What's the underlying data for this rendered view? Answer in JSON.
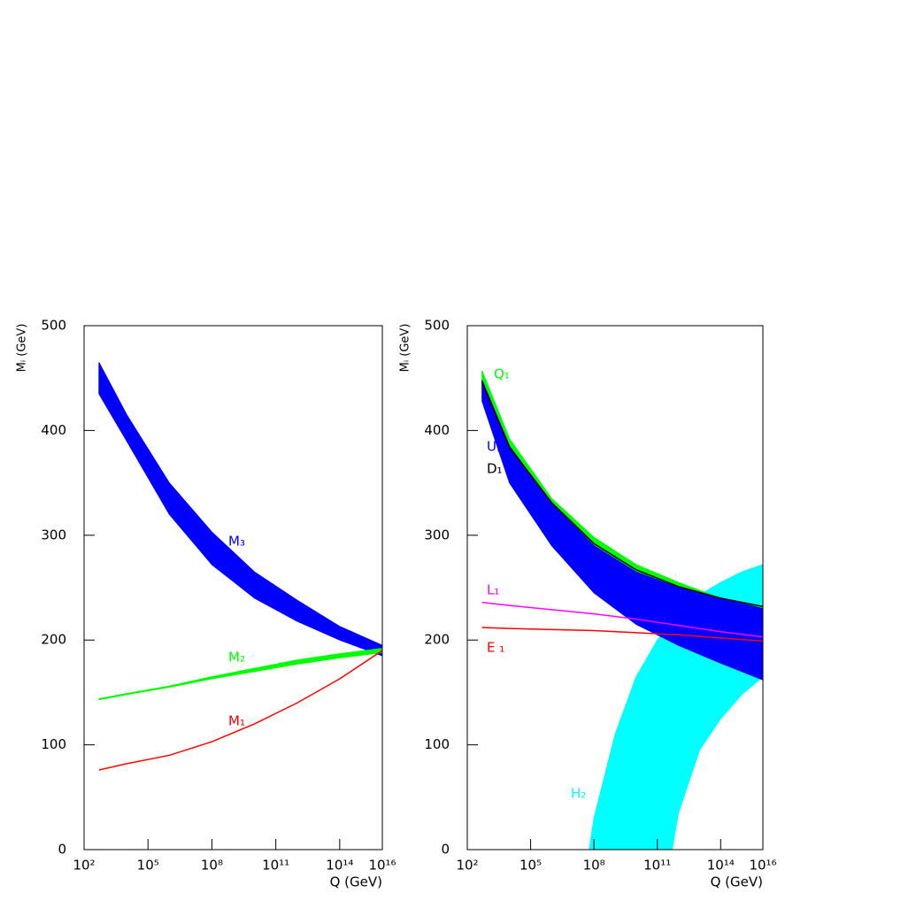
{
  "chart_data": [
    {
      "type": "line",
      "xscale": "log",
      "ylabel": "Mᵢ (GeV)",
      "xlabel": "Q (GeV)",
      "xlim": [
        100,
        1e+16
      ],
      "ylim": [
        0,
        500
      ],
      "xticks": [
        {
          "value": 100,
          "label": "10²"
        },
        {
          "value": 100000.0,
          "label": "10⁵"
        },
        {
          "value": 100000000.0,
          "label": "10⁸"
        },
        {
          "value": 100000000000.0,
          "label": "10¹¹"
        },
        {
          "value": 100000000000000.0,
          "label": "10¹⁴"
        },
        {
          "value": 1e+16,
          "label": "10¹⁶"
        }
      ],
      "yticks": [
        0,
        100,
        200,
        300,
        400,
        500
      ],
      "x": [
        500,
        10000.0,
        1000000.0,
        100000000.0,
        10000000000.0,
        1000000000000.0,
        100000000000000.0,
        1e+16
      ],
      "series": [
        {
          "name": "M₃",
          "color": "#0000ff",
          "upper": [
            465,
            415,
            350,
            303,
            265,
            238,
            213,
            195
          ],
          "lower": [
            435,
            390,
            320,
            272,
            240,
            218,
            200,
            185
          ]
        },
        {
          "name": "M₂",
          "color": "#00ff00",
          "upper": [
            144,
            149,
            156,
            165,
            173,
            181,
            187,
            192
          ],
          "lower": [
            143,
            148,
            155,
            163,
            170,
            177,
            183,
            188
          ]
        },
        {
          "name": "M₁",
          "color": "#ff0000",
          "values": [
            76,
            82,
            90,
            103,
            120,
            140,
            163,
            190
          ]
        }
      ]
    },
    {
      "type": "line",
      "xscale": "log",
      "ylabel": "Mᵢ (GeV)",
      "xlabel": "Q (GeV)",
      "xlim": [
        100,
        1e+16
      ],
      "ylim": [
        0,
        500
      ],
      "xticks": [
        {
          "value": 100,
          "label": "10²"
        },
        {
          "value": 100000.0,
          "label": "10⁵"
        },
        {
          "value": 100000000.0,
          "label": "10⁸"
        },
        {
          "value": 100000000000.0,
          "label": "10¹¹"
        },
        {
          "value": 100000000000000.0,
          "label": "10¹⁴"
        },
        {
          "value": 1e+16,
          "label": "10¹⁶"
        }
      ],
      "yticks": [
        0,
        100,
        200,
        300,
        400,
        500
      ],
      "x": [
        500,
        10000.0,
        1000000.0,
        100000000.0,
        10000000000.0,
        1000000000000.0,
        100000000000000.0,
        1e+16
      ],
      "series": [
        {
          "name": "H₂",
          "color": "#00ffff",
          "x": [
            60000000.0,
            100000000.0,
            1000000000.0,
            10000000000.0,
            100000000000.0,
            500000000000.0,
            1000000000000.0,
            10000000000000.0,
            100000000000000.0,
            1000000000000000.0,
            1e+16
          ],
          "upper": [
            0,
            30,
            110,
            165,
            200,
            218,
            225,
            243,
            255,
            265,
            272
          ],
          "lower": [
            0,
            0,
            0,
            0,
            0,
            0,
            35,
            95,
            125,
            148,
            165
          ]
        },
        {
          "name": "Q₁",
          "color": "#00ff00",
          "upper": [
            457,
            392,
            335,
            298,
            272,
            255,
            240,
            232
          ],
          "lower": [
            440,
            375,
            320,
            285,
            262,
            247,
            236,
            228
          ]
        },
        {
          "name": "U₁",
          "color": "#0000ff",
          "upper": [
            448,
            385,
            330,
            290,
            265,
            250,
            240,
            230
          ],
          "lower": [
            428,
            350,
            290,
            245,
            215,
            195,
            178,
            162
          ]
        },
        {
          "name": "D₁",
          "color": "#000000",
          "values": [
            446,
            384,
            331,
            292,
            267,
            251,
            240,
            232
          ]
        },
        {
          "name": "L₁",
          "color": "#ff00ff",
          "values": [
            236,
            233,
            229,
            225,
            220,
            214,
            208,
            203
          ]
        },
        {
          "name": "E ₁",
          "color": "#ff0000",
          "values": [
            212,
            211,
            210,
            209,
            207,
            205,
            202,
            199
          ]
        }
      ]
    }
  ]
}
